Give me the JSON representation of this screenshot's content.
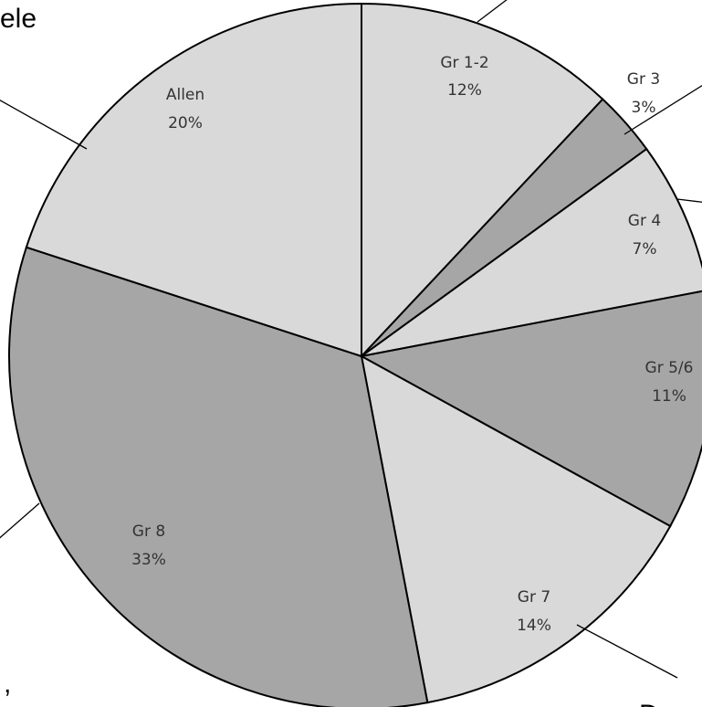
{
  "chart_data": {
    "type": "pie",
    "start_angle_deg": 0,
    "direction": "clockwise",
    "slices": [
      {
        "label": "Gr 1-2",
        "value": 12,
        "pct_label": "12%",
        "color": "#d9d9d9"
      },
      {
        "label": "Gr 3",
        "value": 3,
        "pct_label": "3%",
        "color": "#a6a6a6"
      },
      {
        "label": "Gr 4",
        "value": 7,
        "pct_label": "7%",
        "color": "#d9d9d9"
      },
      {
        "label": "Gr 5/6",
        "value": 11,
        "pct_label": "11%",
        "color": "#a6a6a6"
      },
      {
        "label": "Gr 7",
        "value": 14,
        "pct_label": "14%",
        "color": "#d9d9d9"
      },
      {
        "label": "Gr 8",
        "value": 33,
        "pct_label": "33%",
        "color": "#a6a6a6"
      },
      {
        "label": "Allen",
        "value": 20,
        "pct_label": "20%",
        "color": "#d9d9d9"
      }
    ]
  },
  "surrounding_text": {
    "top_left": "ele",
    "bottom_left_comma": ",",
    "bottom_right": "D"
  }
}
